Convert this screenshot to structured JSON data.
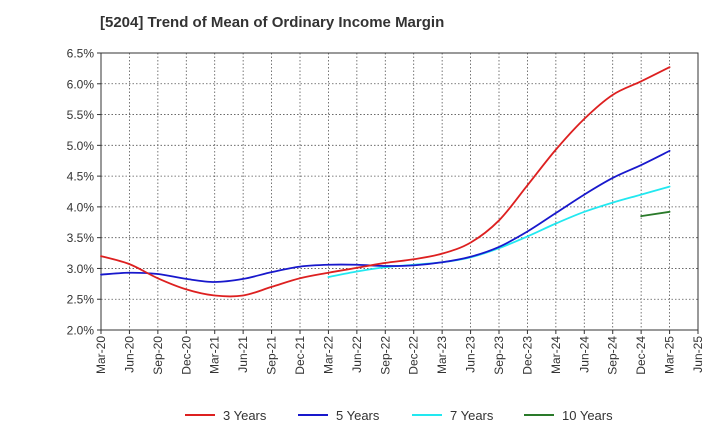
{
  "chart_data": {
    "type": "line",
    "title": "[5204]  Trend of Mean of Ordinary Income Margin",
    "xlabel": "",
    "ylabel": "",
    "x_ticks": [
      "Mar-20",
      "Jun-20",
      "Sep-20",
      "Dec-20",
      "Mar-21",
      "Jun-21",
      "Sep-21",
      "Dec-21",
      "Mar-22",
      "Jun-22",
      "Sep-22",
      "Dec-22",
      "Mar-23",
      "Jun-23",
      "Sep-23",
      "Dec-23",
      "Mar-24",
      "Jun-24",
      "Sep-24",
      "Dec-24",
      "Mar-25",
      "Jun-25"
    ],
    "y_ticks": [
      "2.0%",
      "2.5%",
      "3.0%",
      "3.5%",
      "4.0%",
      "4.5%",
      "5.0%",
      "5.5%",
      "6.0%",
      "6.5%"
    ],
    "ylim": [
      2.0,
      6.5
    ],
    "grid": true,
    "legend_position": "bottom",
    "series": [
      {
        "name": "3 Years",
        "color": "#dd2020",
        "x": [
          "Mar-20",
          "Jun-20",
          "Sep-20",
          "Dec-20",
          "Mar-21",
          "Jun-21",
          "Sep-21",
          "Dec-21",
          "Mar-22",
          "Jun-22",
          "Sep-22",
          "Dec-22",
          "Mar-23",
          "Jun-23",
          "Sep-23",
          "Dec-23",
          "Mar-24",
          "Jun-24",
          "Sep-24",
          "Dec-24",
          "Mar-25"
        ],
        "values": [
          3.2,
          3.07,
          2.84,
          2.66,
          2.56,
          2.56,
          2.7,
          2.84,
          2.93,
          3.01,
          3.09,
          3.15,
          3.24,
          3.42,
          3.78,
          4.35,
          4.93,
          5.43,
          5.82,
          6.04,
          6.27
        ]
      },
      {
        "name": "5 Years",
        "color": "#1818cc",
        "x": [
          "Mar-20",
          "Jun-20",
          "Sep-20",
          "Dec-20",
          "Mar-21",
          "Jun-21",
          "Sep-21",
          "Dec-21",
          "Mar-22",
          "Jun-22",
          "Sep-22",
          "Dec-22",
          "Mar-23",
          "Jun-23",
          "Sep-23",
          "Dec-23",
          "Mar-24",
          "Jun-24",
          "Sep-24",
          "Dec-24",
          "Mar-25"
        ],
        "values": [
          2.9,
          2.93,
          2.91,
          2.83,
          2.78,
          2.83,
          2.94,
          3.03,
          3.06,
          3.06,
          3.04,
          3.05,
          3.1,
          3.19,
          3.35,
          3.6,
          3.9,
          4.2,
          4.47,
          4.68,
          4.91
        ]
      },
      {
        "name": "7 Years",
        "color": "#22e8f0",
        "x": [
          "Mar-22",
          "Jun-22",
          "Sep-22",
          "Dec-22",
          "Mar-23",
          "Jun-23",
          "Sep-23",
          "Dec-23",
          "Mar-24",
          "Jun-24",
          "Sep-24",
          "Dec-24",
          "Mar-25"
        ],
        "values": [
          2.86,
          2.95,
          3.02,
          3.06,
          3.1,
          3.18,
          3.33,
          3.52,
          3.73,
          3.92,
          4.07,
          4.2,
          4.33
        ]
      },
      {
        "name": "10 Years",
        "color": "#2a7a2a",
        "x": [
          "Dec-24",
          "Mar-25"
        ],
        "values": [
          3.85,
          3.92
        ]
      }
    ]
  }
}
